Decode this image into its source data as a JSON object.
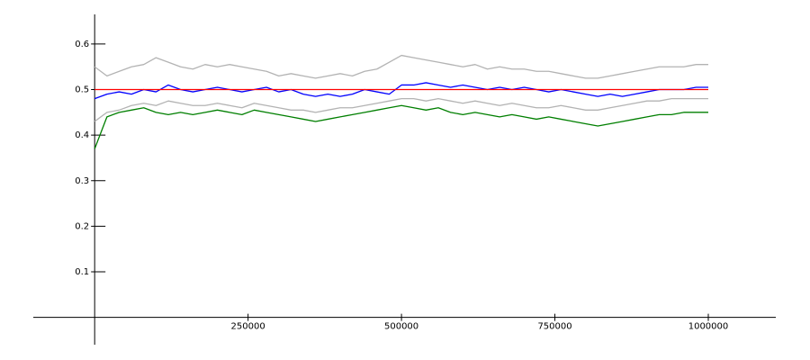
{
  "chart_data": {
    "type": "line",
    "x": [
      0,
      20000,
      40000,
      60000,
      80000,
      100000,
      120000,
      140000,
      160000,
      180000,
      200000,
      220000,
      240000,
      260000,
      280000,
      300000,
      320000,
      340000,
      360000,
      380000,
      400000,
      420000,
      440000,
      460000,
      480000,
      500000,
      520000,
      540000,
      560000,
      580000,
      600000,
      620000,
      640000,
      660000,
      680000,
      700000,
      720000,
      740000,
      760000,
      780000,
      800000,
      820000,
      840000,
      860000,
      880000,
      900000,
      920000,
      940000,
      960000,
      980000,
      1000000
    ],
    "series": [
      {
        "color": "#b3b3b3",
        "values": [
          0.55,
          0.53,
          0.54,
          0.55,
          0.555,
          0.57,
          0.56,
          0.55,
          0.545,
          0.555,
          0.55,
          0.555,
          0.55,
          0.545,
          0.54,
          0.53,
          0.535,
          0.53,
          0.525,
          0.53,
          0.535,
          0.53,
          0.54,
          0.545,
          0.56,
          0.575,
          0.57,
          0.565,
          0.56,
          0.555,
          0.55,
          0.555,
          0.545,
          0.55,
          0.545,
          0.545,
          0.54,
          0.54,
          0.535,
          0.53,
          0.525,
          0.525,
          0.53,
          0.535,
          0.54,
          0.545,
          0.55,
          0.55,
          0.55,
          0.555,
          0.555
        ]
      },
      {
        "color": "#b3b3b3",
        "values": [
          0.43,
          0.45,
          0.455,
          0.465,
          0.47,
          0.465,
          0.475,
          0.47,
          0.465,
          0.465,
          0.47,
          0.465,
          0.46,
          0.47,
          0.465,
          0.46,
          0.455,
          0.455,
          0.45,
          0.455,
          0.46,
          0.46,
          0.465,
          0.47,
          0.475,
          0.48,
          0.48,
          0.475,
          0.48,
          0.475,
          0.47,
          0.475,
          0.47,
          0.465,
          0.47,
          0.465,
          0.46,
          0.46,
          0.465,
          0.46,
          0.455,
          0.455,
          0.46,
          0.465,
          0.47,
          0.475,
          0.475,
          0.48,
          0.48,
          0.48,
          0.48
        ]
      },
      {
        "color": "#0000ff",
        "values": [
          0.48,
          0.49,
          0.495,
          0.49,
          0.5,
          0.495,
          0.51,
          0.5,
          0.495,
          0.5,
          0.505,
          0.5,
          0.495,
          0.5,
          0.505,
          0.495,
          0.5,
          0.49,
          0.485,
          0.49,
          0.485,
          0.49,
          0.5,
          0.495,
          0.49,
          0.51,
          0.51,
          0.515,
          0.51,
          0.505,
          0.51,
          0.505,
          0.5,
          0.505,
          0.5,
          0.505,
          0.5,
          0.495,
          0.5,
          0.495,
          0.49,
          0.485,
          0.49,
          0.485,
          0.49,
          0.495,
          0.5,
          0.5,
          0.5,
          0.505,
          0.505
        ]
      },
      {
        "color": "#007f00",
        "values": [
          0.37,
          0.44,
          0.45,
          0.455,
          0.46,
          0.45,
          0.445,
          0.45,
          0.445,
          0.45,
          0.455,
          0.45,
          0.445,
          0.455,
          0.45,
          0.445,
          0.44,
          0.435,
          0.43,
          0.435,
          0.44,
          0.445,
          0.45,
          0.455,
          0.46,
          0.465,
          0.46,
          0.455,
          0.46,
          0.45,
          0.445,
          0.45,
          0.445,
          0.44,
          0.445,
          0.44,
          0.435,
          0.44,
          0.435,
          0.43,
          0.425,
          0.42,
          0.425,
          0.43,
          0.435,
          0.44,
          0.445,
          0.445,
          0.45,
          0.45,
          0.45
        ]
      },
      {
        "color": "#ff0000",
        "x": [
          0,
          1000000
        ],
        "values": [
          0.5,
          0.5
        ]
      }
    ],
    "xlim": [
      -100000,
      1110000
    ],
    "ylim": [
      -0.06,
      0.665
    ],
    "xticks": [
      250000,
      500000,
      750000,
      1000000
    ],
    "yticks": [
      0.1,
      0.2,
      0.3,
      0.4,
      0.5,
      0.6
    ],
    "grid": false
  }
}
